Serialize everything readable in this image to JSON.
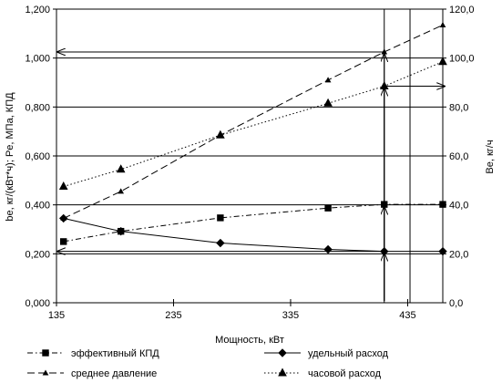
{
  "chart_data": {
    "type": "line",
    "xlabel": "Мощность, кВт",
    "ylabel_left": "bе, кг/(кВт*ч); Pе, МПа, КПД",
    "ylabel_right": "Bе, кг/ч",
    "xlim": [
      135,
      465
    ],
    "xticks": [
      "135",
      "235",
      "335",
      "435"
    ],
    "ylim_left": [
      0,
      1.2
    ],
    "yticks_left": [
      "0,000",
      "0,200",
      "0,400",
      "0,600",
      "0,800",
      "1,000",
      "1,200"
    ],
    "ylim_right": [
      0,
      120
    ],
    "yticks_right": [
      "0,0",
      "20,0",
      "40,0",
      "60,0",
      "80,0",
      "100,0",
      "120,0"
    ],
    "grid": "horizontal",
    "legend_position": "bottom",
    "series": [
      {
        "name": "эффективный КПД",
        "axis": "left",
        "marker": "square",
        "line": "dash-dot",
        "x": [
          141,
          190,
          275,
          367,
          415,
          465
        ],
        "y": [
          0.25,
          0.292,
          0.347,
          0.387,
          0.402,
          0.402
        ]
      },
      {
        "name": "удельный расход",
        "axis": "left",
        "marker": "diamond",
        "line": "solid",
        "x": [
          141,
          190,
          275,
          367,
          415,
          465
        ],
        "y": [
          0.345,
          0.292,
          0.244,
          0.218,
          0.21,
          0.21
        ]
      },
      {
        "name": "среднее давление",
        "axis": "left",
        "marker": "small-triangle",
        "line": "long-dash",
        "x": [
          141,
          190,
          275,
          367,
          415,
          465
        ],
        "y": [
          0.345,
          0.455,
          0.685,
          0.91,
          1.025,
          1.135
        ]
      },
      {
        "name": "часовой расход",
        "axis": "right",
        "marker": "triangle",
        "line": "dotted",
        "x": [
          141,
          190,
          275,
          367,
          415,
          465
        ],
        "y": [
          47.5,
          54.5,
          68.5,
          81.5,
          88.5,
          98.5
        ]
      }
    ],
    "annotations": {
      "vertical_line_x": [
        415,
        437
      ],
      "arrows": [
        "y=1.025 to left axis",
        "y=0.21 to left axis",
        "y=88.5 to right axis",
        "x=415 up to curves"
      ]
    }
  }
}
